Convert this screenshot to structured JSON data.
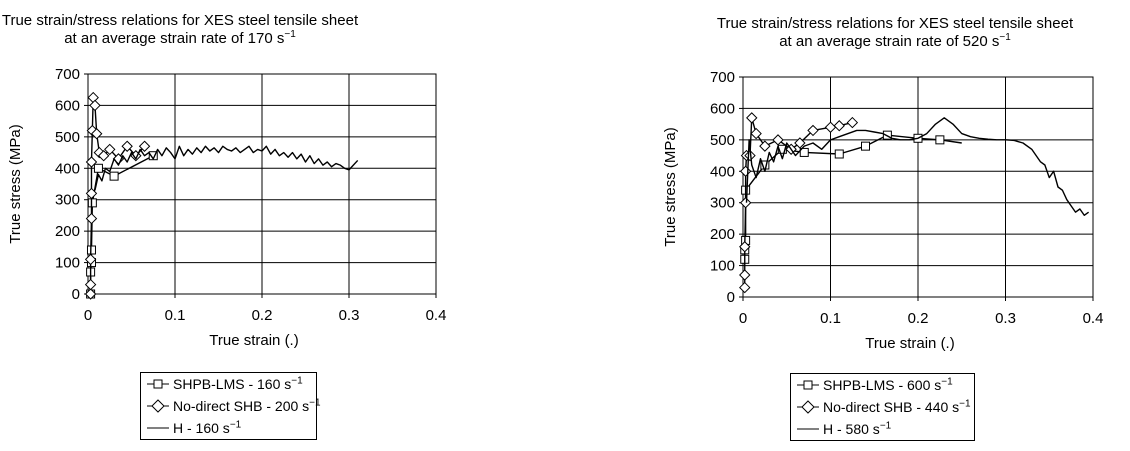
{
  "chart_data": [
    {
      "type": "line",
      "title": [
        "True strain/stress relations for XES steel tensile sheet",
        "at an average strain rate of 170 s",
        "−1"
      ],
      "xlabel": "True strain (.)",
      "ylabel": "True stress (MPa)",
      "xlim": [
        0,
        0.4
      ],
      "ylim": [
        0,
        700
      ],
      "xticks": [
        "0",
        "0.1",
        "0.2",
        "0.3",
        "0.4"
      ],
      "yticks": [
        "0",
        "100",
        "200",
        "300",
        "400",
        "500",
        "600",
        "700"
      ],
      "grid": "major both axes",
      "legend_position": "bottom",
      "series": [
        {
          "name": "SHPB-LMS - 160 s",
          "name_sup": "−1",
          "marker": "square",
          "x": [
            0.003,
            0.003,
            0.004,
            0.004,
            0.005,
            0.012,
            0.03,
            0.075
          ],
          "y": [
            0,
            70,
            100,
            140,
            290,
            400,
            375,
            440
          ]
        },
        {
          "name": "No-direct SHB - 200 s",
          "name_sup": "−1",
          "marker": "diamond",
          "x": [
            0.003,
            0.003,
            0.003,
            0.004,
            0.004,
            0.004,
            0.005,
            0.006,
            0.008,
            0.01,
            0.013,
            0.018,
            0.025,
            0.035,
            0.045,
            0.055,
            0.065
          ],
          "y": [
            0,
            30,
            110,
            240,
            320,
            420,
            520,
            625,
            600,
            510,
            450,
            440,
            460,
            430,
            470,
            440,
            470
          ]
        },
        {
          "name": "H - 160 s",
          "name_sup": "−1",
          "marker": "none",
          "x": [
            0.008,
            0.012,
            0.016,
            0.02,
            0.025,
            0.03,
            0.035,
            0.04,
            0.045,
            0.05,
            0.055,
            0.06,
            0.065,
            0.07,
            0.075,
            0.08,
            0.085,
            0.09,
            0.095,
            0.1,
            0.105,
            0.11,
            0.115,
            0.12,
            0.125,
            0.13,
            0.135,
            0.14,
            0.145,
            0.15,
            0.155,
            0.16,
            0.165,
            0.17,
            0.175,
            0.18,
            0.185,
            0.19,
            0.195,
            0.2,
            0.205,
            0.21,
            0.215,
            0.22,
            0.225,
            0.23,
            0.235,
            0.24,
            0.245,
            0.25,
            0.255,
            0.26,
            0.265,
            0.27,
            0.275,
            0.28,
            0.285,
            0.29,
            0.295,
            0.3,
            0.305,
            0.31
          ],
          "y": [
            330,
            380,
            360,
            400,
            390,
            430,
            410,
            440,
            420,
            450,
            430,
            460,
            440,
            450,
            430,
            460,
            440,
            465,
            450,
            430,
            470,
            440,
            460,
            445,
            465,
            450,
            470,
            455,
            465,
            450,
            470,
            460,
            455,
            465,
            450,
            460,
            470,
            450,
            460,
            455,
            470,
            445,
            460,
            440,
            450,
            435,
            450,
            430,
            445,
            420,
            440,
            415,
            430,
            410,
            420,
            405,
            415,
            410,
            400,
            395,
            410,
            425
          ]
        }
      ]
    },
    {
      "type": "line",
      "title": [
        "True strain/stress relations for XES steel tensile sheet",
        "at an average strain rate of 520 s",
        "−1"
      ],
      "xlabel": "True strain (.)",
      "ylabel": "True stress (MPa)",
      "xlim": [
        0,
        0.4
      ],
      "ylim": [
        0,
        700
      ],
      "xticks": [
        "0",
        "0.1",
        "0.2",
        "0.3",
        "0.4"
      ],
      "yticks": [
        "0",
        "100",
        "200",
        "300",
        "400",
        "500",
        "600",
        "700"
      ],
      "grid": "major both axes",
      "legend_position": "bottom",
      "series": [
        {
          "name": "SHPB-LMS - 600 s",
          "name_sup": "−1",
          "marker": "square",
          "x": [
            0.002,
            0.002,
            0.003,
            0.003,
            0.025,
            0.045,
            0.07,
            0.11,
            0.14,
            0.165,
            0.2,
            0.225
          ],
          "y": [
            120,
            150,
            180,
            340,
            420,
            470,
            460,
            455,
            480,
            515,
            505,
            500
          ],
          "line_end": [
            0.25,
            490
          ]
        },
        {
          "name": "No-direct SHB - 440 s",
          "name_sup": "−1",
          "marker": "diamond",
          "x": [
            0.002,
            0.002,
            0.002,
            0.003,
            0.003,
            0.004,
            0.008,
            0.01,
            0.015,
            0.025,
            0.04,
            0.055,
            0.065,
            0.08,
            0.1,
            0.11,
            0.125
          ],
          "y": [
            30,
            70,
            160,
            300,
            400,
            450,
            450,
            570,
            520,
            480,
            500,
            470,
            490,
            530,
            540,
            545,
            555
          ]
        },
        {
          "name": "H - 580 s",
          "name_sup": "−1",
          "marker": "none",
          "x": [
            0.004,
            0.007,
            0.01,
            0.015,
            0.02,
            0.025,
            0.03,
            0.035,
            0.04,
            0.045,
            0.05,
            0.06,
            0.07,
            0.08,
            0.09,
            0.1,
            0.11,
            0.12,
            0.13,
            0.14,
            0.15,
            0.16,
            0.17,
            0.18,
            0.19,
            0.2,
            0.21,
            0.22,
            0.23,
            0.24,
            0.25,
            0.26,
            0.27,
            0.28,
            0.29,
            0.3,
            0.31,
            0.32,
            0.33,
            0.34,
            0.345,
            0.35,
            0.355,
            0.36,
            0.365,
            0.37,
            0.375,
            0.38,
            0.385,
            0.39,
            0.395
          ],
          "y": [
            300,
            500,
            420,
            380,
            440,
            400,
            460,
            430,
            480,
            440,
            490,
            450,
            480,
            490,
            470,
            500,
            510,
            520,
            530,
            530,
            525,
            520,
            505,
            500,
            500,
            505,
            520,
            550,
            570,
            550,
            520,
            510,
            505,
            502,
            500,
            500,
            498,
            490,
            470,
            430,
            420,
            380,
            400,
            350,
            340,
            310,
            290,
            270,
            280,
            260,
            270
          ]
        }
      ]
    }
  ]
}
